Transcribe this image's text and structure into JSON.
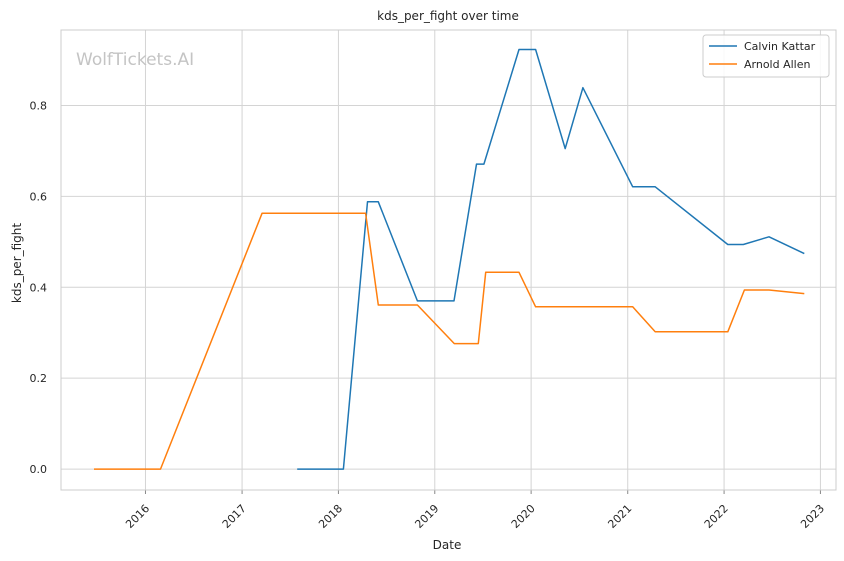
{
  "chart_data": {
    "type": "line",
    "title": "kds_per_fight over time",
    "xlabel": "Date",
    "ylabel": "kds_per_fight",
    "watermark": "WolfTickets.AI",
    "x_type": "date",
    "xlim": [
      "2015-02-15",
      "2023-03-01"
    ],
    "ylim": [
      -0.046,
      0.966
    ],
    "x_ticks": [
      "2016",
      "2017",
      "2018",
      "2019",
      "2020",
      "2021",
      "2022",
      "2023"
    ],
    "y_ticks": [
      "0.0",
      "0.2",
      "0.4",
      "0.6",
      "0.8"
    ],
    "grid": true,
    "legend": "top-right",
    "series": [
      {
        "name": "Calvin Kattar",
        "color": "#1f77b4",
        "points": [
          [
            "2017-07-29",
            0.0
          ],
          [
            "2018-01-20",
            0.0
          ],
          [
            "2018-04-21",
            0.588
          ],
          [
            "2018-06-01",
            0.588
          ],
          [
            "2018-10-27",
            0.37
          ],
          [
            "2019-03-15",
            0.37
          ],
          [
            "2019-06-08",
            0.671
          ],
          [
            "2019-07-06",
            0.671
          ],
          [
            "2019-11-16",
            0.923
          ],
          [
            "2020-01-18",
            0.923
          ],
          [
            "2020-05-09",
            0.705
          ],
          [
            "2020-07-15",
            0.839
          ],
          [
            "2021-01-20",
            0.621
          ],
          [
            "2021-04-15",
            0.621
          ],
          [
            "2022-01-15",
            0.494
          ],
          [
            "2022-03-15",
            0.494
          ],
          [
            "2022-06-20",
            0.511
          ],
          [
            "2022-11-01",
            0.474
          ]
        ]
      },
      {
        "name": "Arnold Allen",
        "color": "#ff7f0e",
        "points": [
          [
            "2015-06-20",
            0.0
          ],
          [
            "2016-02-27",
            0.0
          ],
          [
            "2017-03-18",
            0.563
          ],
          [
            "2018-04-14",
            0.563
          ],
          [
            "2018-06-01",
            0.361
          ],
          [
            "2018-10-27",
            0.361
          ],
          [
            "2019-03-16",
            0.276
          ],
          [
            "2019-06-15",
            0.276
          ],
          [
            "2019-07-13",
            0.433
          ],
          [
            "2019-11-16",
            0.433
          ],
          [
            "2020-01-18",
            0.357
          ],
          [
            "2021-01-20",
            0.357
          ],
          [
            "2021-04-15",
            0.302
          ],
          [
            "2022-01-15",
            0.302
          ],
          [
            "2022-03-19",
            0.394
          ],
          [
            "2022-06-20",
            0.394
          ],
          [
            "2022-11-01",
            0.386
          ]
        ]
      }
    ]
  }
}
